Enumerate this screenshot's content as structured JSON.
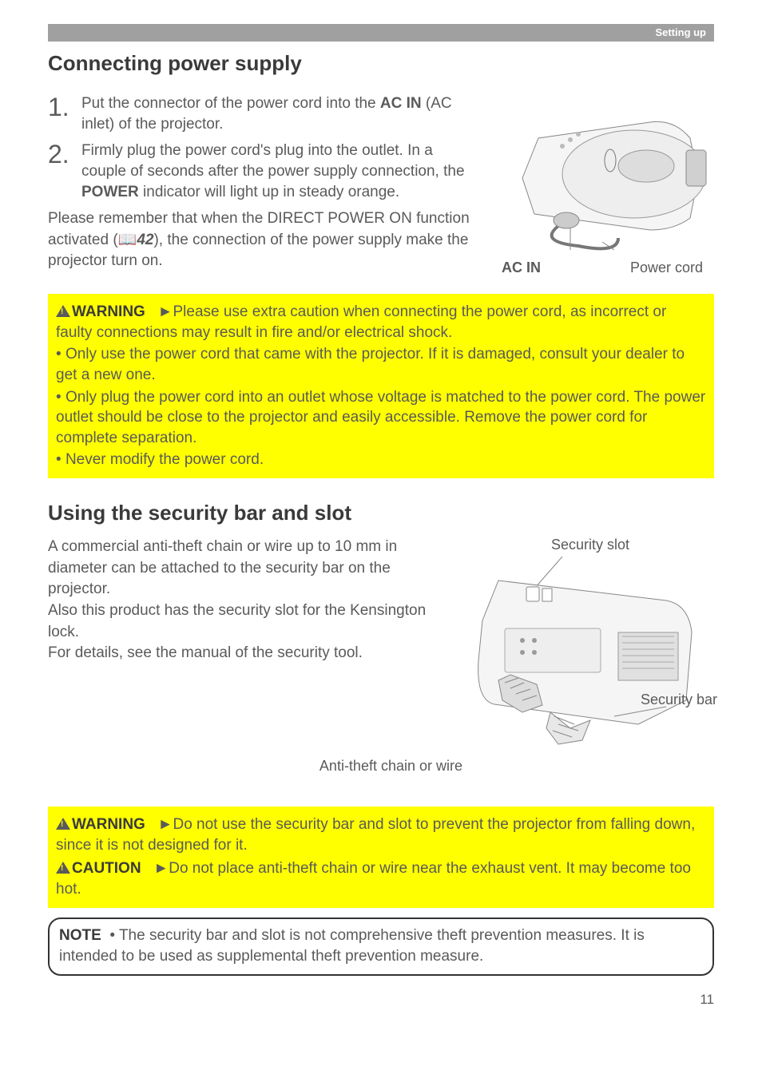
{
  "header": {
    "section": "Setting up"
  },
  "section1": {
    "title": "Connecting power supply",
    "steps": [
      {
        "num": "1.",
        "text_a": "Put the connector of the power cord into the ",
        "bold1": "AC IN",
        "text_b": " (AC inlet) of the projector."
      },
      {
        "num": "2.",
        "text_a": "Firmly plug the power cord's plug into the outlet. In a couple of seconds after the power supply connection, the ",
        "bold1": "POWER",
        "text_b": " indicator will light up in steady orange."
      }
    ],
    "para": {
      "pre": "Please remember that when the DIRECT POWER ON function activated (",
      "ref": "42",
      "post": "), the connection of the power supply make the projector turn on."
    },
    "diagram": {
      "label_left": "AC IN",
      "label_right": "Power cord"
    }
  },
  "warning1": {
    "label": "WARNING",
    "lead": "Please use extra caution when connecting the power cord, as incorrect or faulty connections may result in fire and/or electrical shock.",
    "bullets": [
      "Only use the power cord that came with the projector. If it is damaged, consult your dealer to get a new one.",
      "Only plug the power cord into an outlet whose voltage is matched to the power cord. The power outlet should be close to the projector and easily accessible. Remove the power cord for complete separation.",
      "Never modify the power cord."
    ]
  },
  "section2": {
    "title": "Using the security bar and slot",
    "para": "A commercial anti-theft chain or wire up to 10 mm in diameter can be attached to the security bar on the projector.\nAlso this product has the security slot for the Kensington lock.\nFor details, see the manual of the security tool.",
    "diagram": {
      "slot_label": "Security slot",
      "bar_label": "Security bar",
      "chain_label": "Anti-theft chain or wire"
    }
  },
  "warning2": {
    "w_label": "WARNING",
    "w_text": "Do not use the security bar and slot to prevent the projector from falling down, since it is not designed for it.",
    "c_label": "CAUTION",
    "c_text": "Do not place anti-theft chain or wire near the exhaust vent. It may become too hot."
  },
  "note": {
    "label": "NOTE",
    "text": "The security bar and slot is not comprehensive theft prevention measures. It is intended to be used as supplemental theft prevention measure."
  },
  "page_number": "11",
  "colors": {
    "header_bar": "#a0a0a0",
    "warning_bg": "#ffff00",
    "text": "#5a5a5a",
    "heading": "#3a3a3a"
  }
}
